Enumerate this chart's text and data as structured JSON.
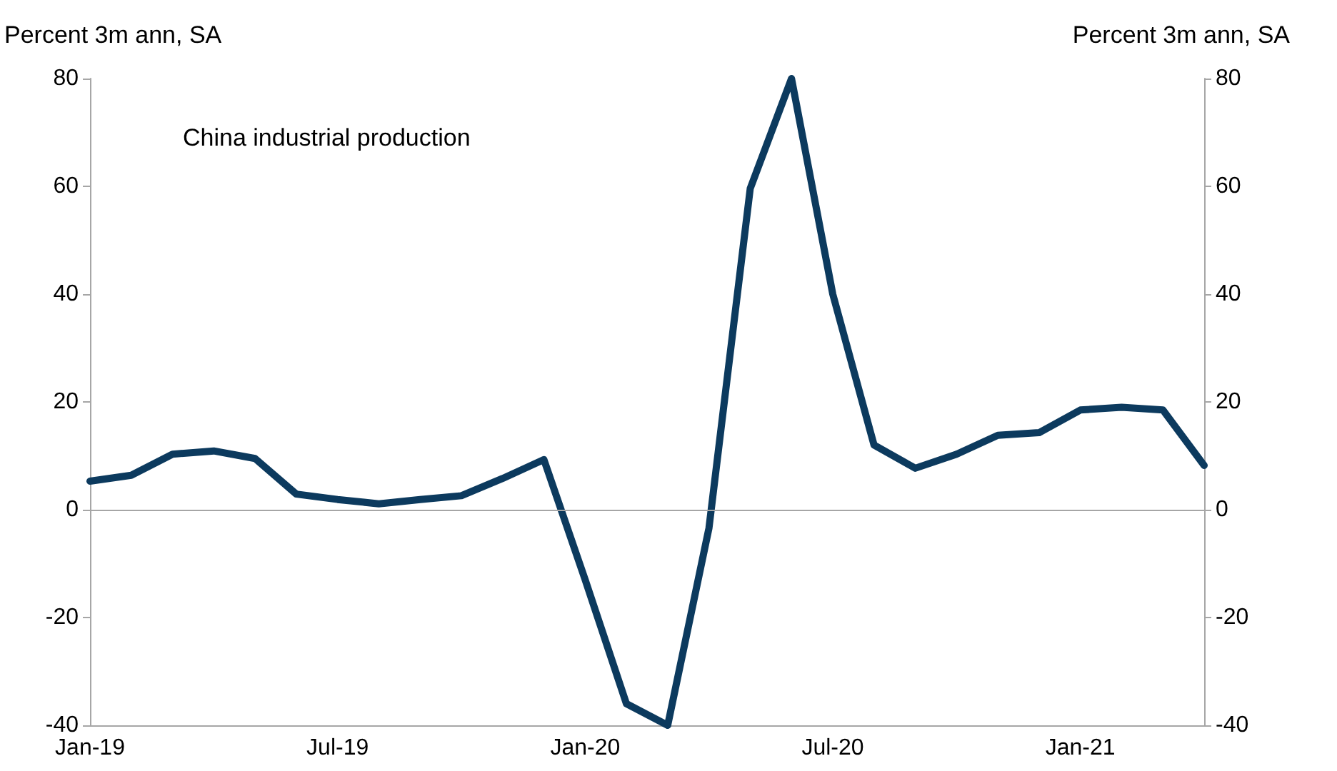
{
  "chart_data": {
    "type": "line",
    "ylabel": "Percent 3m ann, SA",
    "y2label": "Percent 3m ann, SA",
    "annotations": [
      "China industrial production"
    ],
    "categories": [
      "Jan-19",
      null,
      null,
      null,
      null,
      null,
      "Jul-19",
      null,
      null,
      null,
      null,
      null,
      "Jan-20",
      null,
      null,
      null,
      null,
      null,
      "Jul-20",
      null,
      null,
      null,
      null,
      null,
      "Jan-21",
      null,
      null,
      null
    ],
    "series": [
      {
        "color": "#0c3a5e",
        "values": [
          5.3,
          6.4,
          10.3,
          10.9,
          9.5,
          2.9,
          1.9,
          1.1,
          1.9,
          2.6,
          5.8,
          9.3,
          -13,
          -36,
          -40,
          -3.4,
          59.6,
          80,
          40,
          12,
          7.7,
          10.3,
          13.8,
          14.3,
          18.5,
          19,
          18.5,
          8.2
        ]
      }
    ],
    "ylim": [
      -40,
      80
    ],
    "yticks": [
      -40,
      -20,
      0,
      20,
      40,
      60,
      80
    ],
    "y2lim": [
      -40,
      80
    ],
    "y2ticks": [
      -40,
      -20,
      0,
      20,
      40,
      60,
      80
    ],
    "ref_lines": [
      {
        "axis": "y",
        "value": 0,
        "color": "#a6a6a6"
      }
    ],
    "grid": false,
    "marker": "none",
    "line_style": "solid"
  }
}
